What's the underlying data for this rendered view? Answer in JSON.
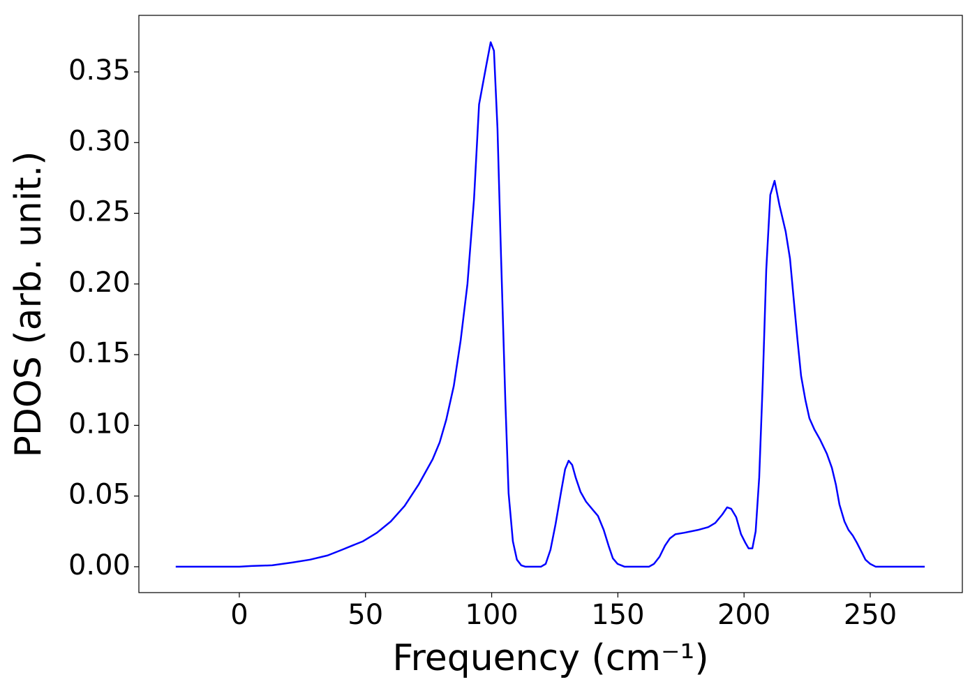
{
  "chart_data": {
    "type": "line",
    "xlabel": "Frequency (cm⁻¹)",
    "ylabel": "PDOS (arb. unit.)",
    "color": "#0000ff",
    "x": [
      -25.2,
      0,
      4.7,
      13,
      21,
      28,
      35,
      40.7,
      44.8,
      49,
      54.5,
      60,
      65.5,
      71,
      76.6,
      79.4,
      82,
      85,
      87.7,
      90.4,
      93,
      95,
      97.9,
      99.6,
      100.9,
      102.3,
      103.7,
      105.4,
      106.7,
      108.4,
      110,
      111.7,
      113.4,
      119.5,
      121.4,
      123.3,
      125.3,
      127.5,
      129.1,
      130.5,
      131.9,
      133.3,
      135.2,
      137.4,
      140.2,
      142.1,
      144.4,
      146.3,
      148,
      149.9,
      152.7,
      162.3,
      164.3,
      166.5,
      168.7,
      170.6,
      172.8,
      176.2,
      181.7,
      185.8,
      188.6,
      191.4,
      193.3,
      194.9,
      196.9,
      198.8,
      200.5,
      201.8,
      203.3,
      204.6,
      206,
      207.4,
      208.8,
      210.4,
      212.1,
      214,
      216.5,
      218.2,
      219.9,
      221.2,
      222.6,
      224.3,
      225.9,
      227.9,
      230.1,
      232.8,
      234.8,
      236.4,
      237.8,
      239.8,
      241.4,
      243.1,
      244.7,
      246.7,
      248.1,
      250,
      252.2,
      271.6
    ],
    "values": [
      0,
      0,
      0.0005,
      0.001,
      0.003,
      0.005,
      0.008,
      0.012,
      0.015,
      0.018,
      0.024,
      0.032,
      0.043,
      0.058,
      0.076,
      0.088,
      0.104,
      0.128,
      0.16,
      0.2,
      0.26,
      0.327,
      0.355,
      0.371,
      0.365,
      0.31,
      0.22,
      0.118,
      0.052,
      0.018,
      0.005,
      0.001,
      0,
      0,
      0.002,
      0.012,
      0.03,
      0.053,
      0.069,
      0.075,
      0.072,
      0.063,
      0.053,
      0.046,
      0.04,
      0.036,
      0.026,
      0.015,
      0.006,
      0.002,
      0,
      0,
      0.002,
      0.007,
      0.015,
      0.02,
      0.023,
      0.024,
      0.026,
      0.028,
      0.031,
      0.037,
      0.042,
      0.041,
      0.035,
      0.023,
      0.017,
      0.013,
      0.013,
      0.025,
      0.063,
      0.13,
      0.21,
      0.263,
      0.273,
      0.256,
      0.237,
      0.218,
      0.185,
      0.16,
      0.135,
      0.118,
      0.105,
      0.097,
      0.09,
      0.08,
      0.07,
      0.058,
      0.044,
      0.032,
      0.026,
      0.022,
      0.017,
      0.01,
      0.005,
      0.002,
      0,
      0
    ],
    "xlim": [
      -39.8,
      286.5
    ],
    "ylim": [
      -0.0183,
      0.39
    ],
    "xticks": [
      0,
      50,
      100,
      150,
      200,
      250
    ],
    "yticks": [
      {
        "value": 0,
        "label": "0.00"
      },
      {
        "value": 0.05,
        "label": "0.05"
      },
      {
        "value": 0.1,
        "label": "0.10"
      },
      {
        "value": 0.15,
        "label": "0.15"
      },
      {
        "value": 0.2,
        "label": "0.20"
      },
      {
        "value": 0.25,
        "label": "0.25"
      },
      {
        "value": 0.3,
        "label": "0.30"
      },
      {
        "value": 0.35,
        "label": "0.35"
      }
    ],
    "grid": false
  }
}
